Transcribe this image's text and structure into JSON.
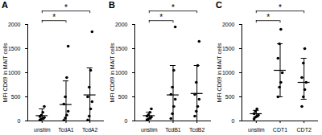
{
  "chart_data": [
    {
      "type": "scatter",
      "title": "A",
      "y_label": "MFI CD69 in MAIT cells",
      "categories": [
        "unstim",
        "TcdA1",
        "TcdA2"
      ],
      "values": [
        [
          20,
          40,
          50,
          70,
          90,
          120,
          180,
          300
        ],
        [
          10,
          60,
          120,
          200,
          350,
          500,
          900,
          1550
        ],
        [
          20,
          100,
          250,
          400,
          500,
          700,
          1050,
          1850
        ]
      ],
      "means": [
        110,
        340,
        540
      ],
      "error_bars": [
        [
          30,
          250
        ],
        [
          0,
          830
        ],
        [
          0,
          1100
        ]
      ],
      "significance": [
        {
          "pair": [
            "unstim",
            "TcdA1"
          ],
          "label": "*"
        },
        {
          "pair": [
            "unstim",
            "TcdA2"
          ],
          "label": "*"
        }
      ],
      "color": "#000000",
      "marker": "circle",
      "ylim": [
        0,
        2000
      ],
      "yticks": [
        0,
        500,
        1000,
        1500,
        2000
      ]
    },
    {
      "type": "scatter",
      "title": "B",
      "y_label": "MFI CD69 in MAIT cells",
      "categories": [
        "unstim",
        "TcdB1",
        "TcdB2"
      ],
      "values": [
        [
          20,
          40,
          60,
          80,
          100,
          130,
          180,
          250
        ],
        [
          50,
          150,
          300,
          450,
          550,
          700,
          1050,
          1950
        ],
        [
          100,
          200,
          300,
          450,
          550,
          800,
          1150,
          1650
        ]
      ],
      "means": [
        110,
        540,
        570
      ],
      "error_bars": [
        [
          40,
          180
        ],
        [
          0,
          1150
        ],
        [
          0,
          1150
        ]
      ],
      "significance": [
        {
          "pair": [
            "unstim",
            "TcdB1"
          ],
          "label": "*"
        },
        {
          "pair": [
            "unstim",
            "TcdB2"
          ],
          "label": "*"
        }
      ],
      "color": "#000000",
      "marker": "circle",
      "ylim": [
        0,
        2000
      ],
      "yticks": [
        0,
        500,
        1000,
        1500,
        2000
      ]
    },
    {
      "type": "scatter",
      "title": "C",
      "y_label": "MFI CD69 in MAIT cells",
      "categories": [
        "unstim",
        "CDT1",
        "CDT2"
      ],
      "values": [
        [
          40,
          80,
          100,
          120,
          150,
          200,
          250
        ],
        [
          500,
          700,
          800,
          1000,
          1300,
          1600,
          1900
        ],
        [
          300,
          500,
          650,
          800,
          900,
          1200,
          1500
        ]
      ],
      "means": [
        150,
        1050,
        800
      ],
      "error_bars": [
        [
          80,
          220
        ],
        [
          500,
          1600
        ],
        [
          450,
          1300
        ]
      ],
      "significance": [
        {
          "pair": [
            "unstim",
            "CDT1"
          ],
          "label": "*"
        },
        {
          "pair": [
            "unstim",
            "CDT2"
          ],
          "label": "*"
        }
      ],
      "color": "#000000",
      "marker": "circle",
      "ylim": [
        0,
        2000
      ],
      "yticks": [
        0,
        500,
        1000,
        1500,
        2000
      ]
    }
  ]
}
